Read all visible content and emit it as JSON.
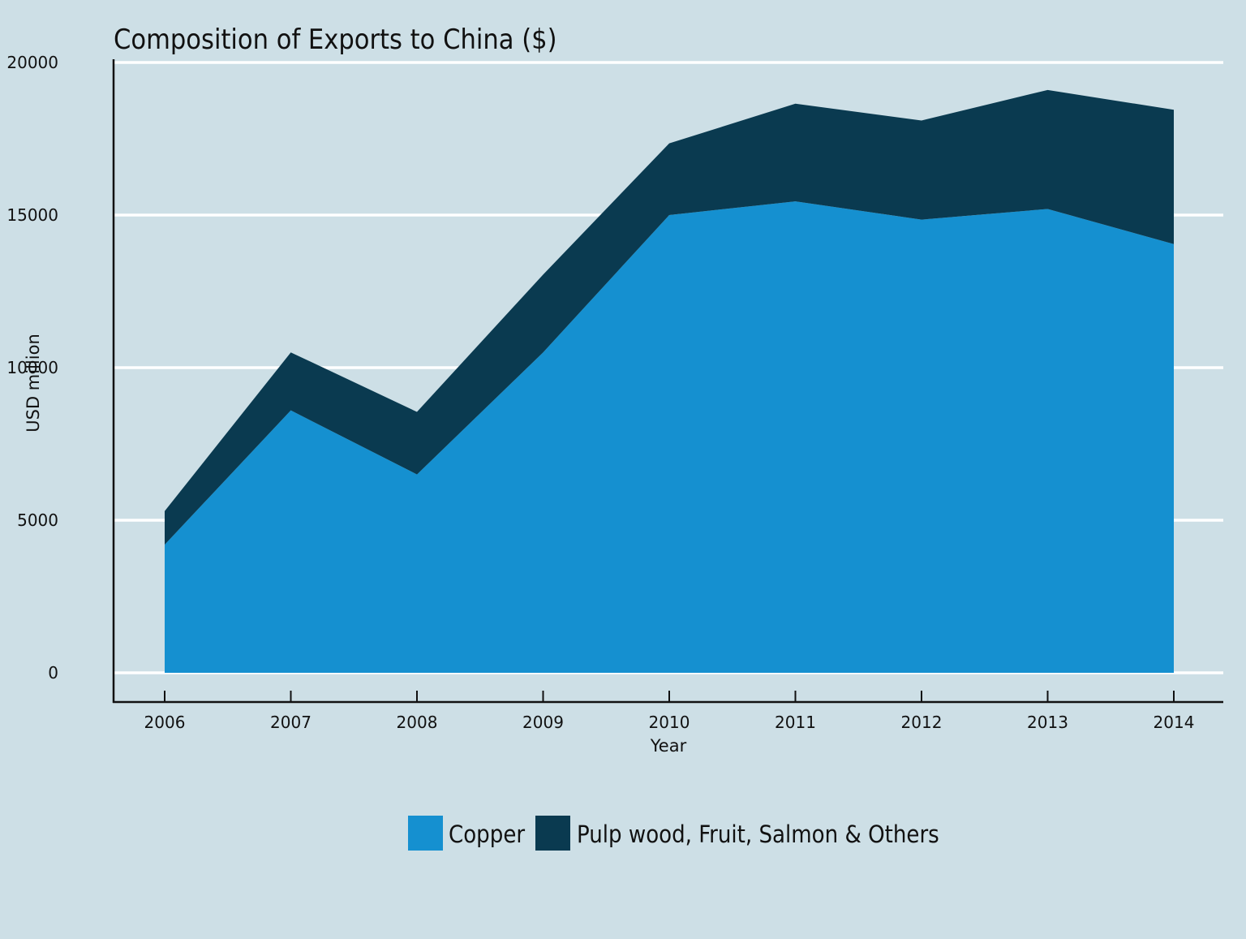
{
  "chart_data": {
    "type": "area",
    "stacked": true,
    "title": "Composition of Exports to China ($)",
    "xlabel": "Year",
    "ylabel": "USD million",
    "x": [
      2006,
      2007,
      2008,
      2009,
      2010,
      2011,
      2012,
      2013,
      2014
    ],
    "xticks": [
      "2006",
      "2007",
      "2008",
      "2009",
      "2010",
      "2011",
      "2012",
      "2013",
      "2014"
    ],
    "yticks": [
      "0",
      "5000",
      "10000",
      "15000",
      "20000"
    ],
    "ylim": [
      0,
      20000
    ],
    "grid": "horizontal",
    "legend_position": "bottom-center",
    "series": [
      {
        "name": "Copper",
        "color": "#1590d0",
        "values": [
          4200,
          8600,
          6500,
          10500,
          15000,
          15450,
          14850,
          15200,
          14050
        ]
      },
      {
        "name": "Pulp wood, Fruit, Salmon & Others",
        "color": "#0a3a50",
        "values": [
          1100,
          1900,
          2050,
          2550,
          2350,
          3200,
          3250,
          3900,
          4400
        ]
      }
    ]
  }
}
